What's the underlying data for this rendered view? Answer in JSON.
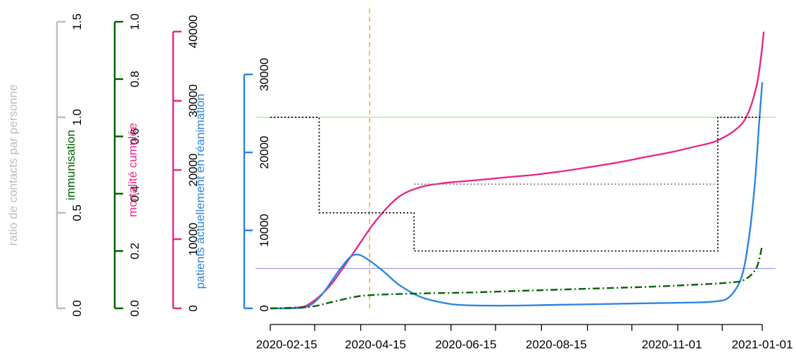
{
  "chart_data": {
    "type": "line",
    "x_ticks": [
      "2020-02-15",
      "2020-04-15",
      "2020-06-15",
      "2020-08-15",
      "2020-11-01",
      "2021-01-01"
    ],
    "x_range": [
      "2020-01-25",
      "2021-01-10"
    ],
    "axes": [
      {
        "key": "contacts",
        "label": "ratio de contacts par personne",
        "color": "#bdbdbd",
        "range": [
          0,
          1.5
        ],
        "ticks": [
          "0.0",
          "0.5",
          "1.0",
          "1.5"
        ]
      },
      {
        "key": "immun",
        "label": "immunisation",
        "color": "#006400",
        "range": [
          0,
          1
        ],
        "ticks": [
          "0.0",
          "0.2",
          "0.4",
          "0.6",
          "0.8",
          "1.0"
        ]
      },
      {
        "key": "mort",
        "label": "mortalité cumulée",
        "color": "#e7298a",
        "range": [
          0,
          40000
        ],
        "ticks": [
          "0",
          "10000",
          "20000",
          "30000",
          "40000"
        ]
      },
      {
        "key": "icu",
        "label": "patients actuellement en réanimation",
        "color": "#2c86e0",
        "range": [
          0,
          30000
        ],
        "ticks": [
          "0",
          "10000",
          "20000",
          "30000"
        ]
      }
    ],
    "series": [
      {
        "axis": "mort",
        "color": "#e7298a",
        "style": "solid",
        "points": [
          [
            "2020-02-04",
            0
          ],
          [
            "2020-02-20",
            80
          ],
          [
            "2020-03-01",
            600
          ],
          [
            "2020-03-15",
            3200
          ],
          [
            "2020-03-31",
            8000
          ],
          [
            "2020-04-15",
            12600
          ],
          [
            "2020-04-30",
            16000
          ],
          [
            "2020-05-15",
            17500
          ],
          [
            "2020-05-31",
            18100
          ],
          [
            "2020-06-15",
            18400
          ],
          [
            "2020-07-01",
            18700
          ],
          [
            "2020-07-15",
            19000
          ],
          [
            "2020-07-31",
            19300
          ],
          [
            "2020-08-15",
            19700
          ],
          [
            "2020-08-31",
            20200
          ],
          [
            "2020-09-15",
            20700
          ],
          [
            "2020-10-01",
            21300
          ],
          [
            "2020-10-15",
            21900
          ],
          [
            "2020-11-01",
            22600
          ],
          [
            "2020-11-15",
            23300
          ],
          [
            "2020-12-01",
            24200
          ],
          [
            "2020-12-15",
            26000
          ],
          [
            "2020-12-22",
            28000
          ],
          [
            "2020-12-28",
            32000
          ],
          [
            "2020-12-31",
            36000
          ],
          [
            "2021-01-02",
            40000
          ]
        ]
      },
      {
        "axis": "icu",
        "color": "#2c86e0",
        "style": "solid",
        "points": [
          [
            "2020-02-04",
            0
          ],
          [
            "2020-02-20",
            20
          ],
          [
            "2020-03-01",
            300
          ],
          [
            "2020-03-10",
            1800
          ],
          [
            "2020-03-20",
            4500
          ],
          [
            "2020-03-28",
            6400
          ],
          [
            "2020-04-02",
            6900
          ],
          [
            "2020-04-08",
            6500
          ],
          [
            "2020-04-20",
            4800
          ],
          [
            "2020-05-01",
            3000
          ],
          [
            "2020-05-15",
            1500
          ],
          [
            "2020-05-31",
            700
          ],
          [
            "2020-06-15",
            400
          ],
          [
            "2020-07-15",
            350
          ],
          [
            "2020-08-15",
            450
          ],
          [
            "2020-09-15",
            550
          ],
          [
            "2020-10-15",
            650
          ],
          [
            "2020-11-15",
            750
          ],
          [
            "2020-12-01",
            900
          ],
          [
            "2020-12-10",
            1500
          ],
          [
            "2020-12-18",
            4000
          ],
          [
            "2020-12-23",
            9000
          ],
          [
            "2020-12-27",
            16000
          ],
          [
            "2020-12-30",
            24000
          ],
          [
            "2021-01-01",
            29000
          ]
        ]
      },
      {
        "axis": "immun",
        "color": "#006400",
        "style": "dashdot",
        "points": [
          [
            "2020-02-04",
            0
          ],
          [
            "2020-03-01",
            0.005
          ],
          [
            "2020-03-15",
            0.02
          ],
          [
            "2020-04-01",
            0.04
          ],
          [
            "2020-04-15",
            0.047
          ],
          [
            "2020-05-15",
            0.052
          ],
          [
            "2020-06-15",
            0.055
          ],
          [
            "2020-07-15",
            0.06
          ],
          [
            "2020-08-15",
            0.065
          ],
          [
            "2020-09-15",
            0.07
          ],
          [
            "2020-10-15",
            0.075
          ],
          [
            "2020-11-15",
            0.082
          ],
          [
            "2020-12-10",
            0.09
          ],
          [
            "2020-12-20",
            0.1
          ],
          [
            "2020-12-28",
            0.14
          ],
          [
            "2021-01-01",
            0.22
          ]
        ]
      },
      {
        "axis": "contacts",
        "color": "#000000",
        "style": "dotted",
        "points": [
          [
            "2020-02-04",
            1.0
          ],
          [
            "2020-03-08",
            1.0
          ],
          [
            "2020-03-08",
            0.5
          ],
          [
            "2020-05-11",
            0.5
          ],
          [
            "2020-05-11",
            0.3
          ],
          [
            "2020-12-02",
            0.3
          ],
          [
            "2020-12-02",
            1.0
          ],
          [
            "2020-12-31",
            1.0
          ]
        ]
      },
      {
        "axis": "contacts",
        "color": "#808080",
        "style": "dotted",
        "points": [
          [
            "2020-05-11",
            0.65
          ],
          [
            "2020-12-02",
            0.65
          ]
        ]
      }
    ],
    "hlines": [
      {
        "axis": "contacts",
        "value": 1.0,
        "color": "#90ee90"
      },
      {
        "axis": "icu",
        "value": 5100,
        "color": "#9999ee"
      }
    ],
    "vlines": [
      {
        "date": "2020-04-11",
        "color": "#ff9900",
        "style": "dashed"
      }
    ]
  }
}
